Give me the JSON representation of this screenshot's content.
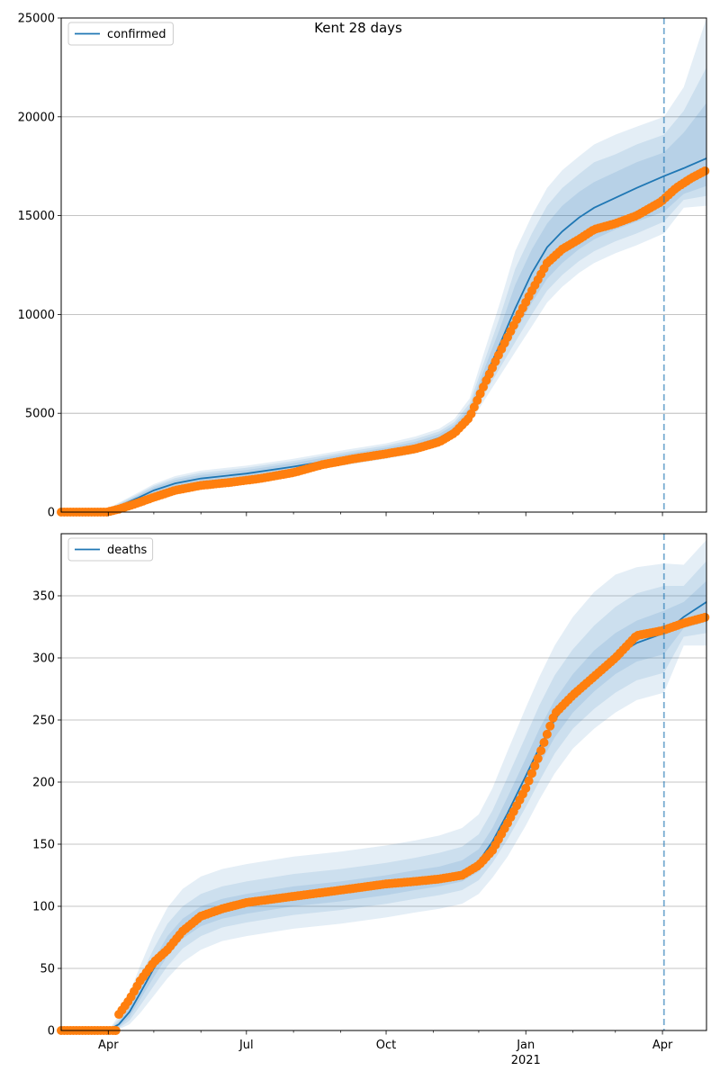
{
  "title": "Kent 28 days",
  "colors": {
    "model_line": "#1f77b4",
    "band": "#1f77b4",
    "observed": "#ff7f0e",
    "grid": "#b0b0b0",
    "forecast_line": "#1f77b4"
  },
  "x_axis": {
    "start": "2020-03-01",
    "end": "2021-04-30",
    "forecast_start": "2021-04-02",
    "ticks": [
      {
        "date": "2020-04-01",
        "label": "Apr",
        "sublabel": ""
      },
      {
        "date": "2020-07-01",
        "label": "Jul",
        "sublabel": ""
      },
      {
        "date": "2020-10-01",
        "label": "Oct",
        "sublabel": ""
      },
      {
        "date": "2021-01-01",
        "label": "Jan",
        "sublabel": "2021"
      },
      {
        "date": "2021-04-01",
        "label": "Apr",
        "sublabel": ""
      }
    ],
    "minor_ticks": [
      "2020-05-01",
      "2020-06-01",
      "2020-08-01",
      "2020-09-01",
      "2020-11-01",
      "2020-12-01",
      "2021-02-01",
      "2021-03-01",
      "2021-05-01"
    ]
  },
  "chart_data": [
    {
      "type": "line",
      "legend": "confirmed",
      "legend_position": "top-left",
      "grid": true,
      "ylim": [
        0,
        25000
      ],
      "yticks": [
        0,
        5000,
        10000,
        15000,
        20000,
        25000
      ],
      "model": {
        "dates": [
          "2020-03-01",
          "2020-03-15",
          "2020-03-29",
          "2020-04-08",
          "2020-04-20",
          "2020-05-01",
          "2020-05-15",
          "2020-06-01",
          "2020-07-01",
          "2020-08-01",
          "2020-09-01",
          "2020-10-01",
          "2020-10-20",
          "2020-11-05",
          "2020-11-15",
          "2020-11-25",
          "2020-12-05",
          "2020-12-15",
          "2020-12-25",
          "2021-01-05",
          "2021-01-15",
          "2021-01-25",
          "2021-02-05",
          "2021-02-15",
          "2021-03-01",
          "2021-03-15",
          "2021-04-02",
          "2021-04-15",
          "2021-04-30"
        ],
        "median": [
          0,
          0,
          20,
          300,
          700,
          1100,
          1450,
          1700,
          1950,
          2300,
          2700,
          3050,
          3350,
          3750,
          4200,
          5000,
          6800,
          8500,
          10300,
          12100,
          13400,
          14200,
          14900,
          15400,
          15900,
          16400,
          17000,
          17400,
          17900
        ],
        "bands": [
          {
            "lower": [
              0,
              0,
              10,
              220,
              580,
              950,
              1280,
              1520,
              1780,
              2120,
              2500,
              2860,
              3150,
              3560,
              4000,
              4750,
              6300,
              7700,
              9100,
              10600,
              11800,
              12600,
              13300,
              13800,
              14300,
              14700,
              15200,
              16100,
              16500
            ],
            "upper": [
              0,
              0,
              35,
              380,
              820,
              1260,
              1620,
              1880,
              2130,
              2480,
              2900,
              3260,
              3560,
              3950,
              4420,
              5300,
              7300,
              9300,
              11500,
              13300,
              14600,
              15500,
              16200,
              16700,
              17200,
              17700,
              18200,
              19200,
              20700
            ]
          },
          {
            "lower": [
              0,
              0,
              5,
              180,
              520,
              880,
              1200,
              1440,
              1700,
              2040,
              2420,
              2780,
              3060,
              3470,
              3900,
              4600,
              6000,
              7300,
              8600,
              10000,
              11200,
              12000,
              12700,
              13200,
              13700,
              14100,
              14700,
              15800,
              16000
            ],
            "upper": [
              0,
              0,
              45,
              430,
              890,
              1340,
              1720,
              1990,
              2240,
              2590,
              3000,
              3370,
              3690,
              4080,
              4560,
              5500,
              7700,
              9900,
              12300,
              14100,
              15500,
              16400,
              17100,
              17700,
              18100,
              18600,
              19100,
              20300,
              22500
            ],
            "note": ""
          },
          {
            "lower": [
              0,
              0,
              0,
              140,
              460,
              800,
              1120,
              1360,
              1620,
              1960,
              2340,
              2690,
              2960,
              3370,
              3790,
              4450,
              5700,
              6900,
              8100,
              9400,
              10600,
              11400,
              12100,
              12600,
              13100,
              13500,
              14100,
              15400,
              15500
            ],
            "upper": [
              0,
              0,
              60,
              480,
              960,
              1420,
              1820,
              2100,
              2350,
              2700,
              3110,
              3480,
              3820,
              4220,
              4720,
              5750,
              8200,
              10600,
              13200,
              15000,
              16400,
              17300,
              18000,
              18600,
              19100,
              19500,
              20000,
              21500,
              25000
            ]
          }
        ]
      },
      "observed": {
        "dates": [
          "2020-03-01",
          "2020-03-31",
          "2020-04-08",
          "2020-04-20",
          "2020-05-01",
          "2020-05-15",
          "2020-06-01",
          "2020-06-20",
          "2020-07-10",
          "2020-08-01",
          "2020-08-20",
          "2020-09-10",
          "2020-10-01",
          "2020-10-20",
          "2020-11-05",
          "2020-11-15",
          "2020-11-25",
          "2020-12-05",
          "2020-12-15",
          "2020-12-25",
          "2021-01-05",
          "2021-01-15",
          "2021-01-25",
          "2021-02-05",
          "2021-02-15",
          "2021-03-01",
          "2021-03-15",
          "2021-03-31",
          "2021-04-10",
          "2021-04-20",
          "2021-04-30"
        ],
        "values": [
          0,
          0,
          150,
          450,
          750,
          1100,
          1350,
          1500,
          1700,
          2000,
          2400,
          2700,
          2950,
          3200,
          3550,
          4000,
          4800,
          6500,
          8100,
          9600,
          11200,
          12600,
          13300,
          13800,
          14300,
          14600,
          15000,
          15700,
          16400,
          16900,
          17300
        ]
      }
    },
    {
      "type": "line",
      "legend": "deaths",
      "legend_position": "top-left",
      "grid": true,
      "ylim": [
        0,
        400
      ],
      "yticks": [
        0,
        50,
        100,
        150,
        200,
        250,
        300,
        350
      ],
      "model": {
        "dates": [
          "2020-03-01",
          "2020-03-25",
          "2020-04-01",
          "2020-04-08",
          "2020-04-15",
          "2020-04-22",
          "2020-05-01",
          "2020-05-10",
          "2020-05-20",
          "2020-06-01",
          "2020-06-15",
          "2020-07-01",
          "2020-08-01",
          "2020-09-01",
          "2020-10-01",
          "2020-10-20",
          "2020-11-05",
          "2020-11-20",
          "2020-12-01",
          "2020-12-10",
          "2020-12-20",
          "2021-01-01",
          "2021-01-10",
          "2021-01-20",
          "2021-02-01",
          "2021-02-15",
          "2021-03-01",
          "2021-03-15",
          "2021-04-02",
          "2021-04-15",
          "2021-04-30"
        ],
        "median": [
          0,
          0,
          0,
          5,
          15,
          30,
          50,
          68,
          82,
          92,
          98,
          102,
          108,
          112,
          117,
          121,
          124,
          128,
          136,
          152,
          175,
          205,
          228,
          250,
          270,
          288,
          302,
          312,
          320,
          333,
          345
        ],
        "bands": [
          {
            "lower": [
              0,
              0,
              0,
              3,
              11,
              25,
              43,
              60,
              74,
              84,
              90,
              94,
              100,
              104,
              109,
              113,
              116,
              120,
              128,
              143,
              164,
              192,
              214,
              236,
              256,
              273,
              287,
              297,
              303,
              324,
              329
            ],
            "upper": [
              0,
              0,
              0,
              7,
              19,
              36,
              57,
              76,
              90,
              100,
              106,
              110,
              116,
              120,
              125,
              129,
              132,
              137,
              146,
              163,
              188,
              219,
              243,
              266,
              287,
              306,
              320,
              330,
              338,
              345,
              362
            ]
          },
          {
            "lower": [
              0,
              0,
              0,
              2,
              8,
              20,
              36,
              52,
              66,
              76,
              83,
              87,
              93,
              97,
              102,
              106,
              109,
              113,
              121,
              135,
              154,
              180,
              201,
              223,
              243,
              259,
              272,
              282,
              288,
              317,
              320
            ],
            "upper": [
              0,
              0,
              0,
              9,
              24,
              43,
              66,
              86,
              100,
              110,
              116,
              120,
              126,
              130,
              135,
              139,
              143,
              148,
              158,
              177,
              204,
              237,
              262,
              286,
              307,
              326,
              341,
              352,
              358,
              358,
              378
            ]
          },
          {
            "lower": [
              0,
              0,
              0,
              1,
              5,
              14,
              28,
              42,
              55,
              65,
              72,
              76,
              82,
              86,
              91,
              95,
              98,
              102,
              110,
              123,
              140,
              165,
              186,
              207,
              227,
              243,
              256,
              266,
              272,
              310,
              310
            ],
            "upper": [
              0,
              0,
              0,
              12,
              30,
              52,
              78,
              99,
              114,
              124,
              130,
              134,
              140,
              144,
              149,
              153,
              157,
              163,
              174,
              195,
              225,
              260,
              285,
              310,
              333,
              353,
              367,
              373,
              376,
              375,
              395
            ]
          }
        ]
      },
      "observed": {
        "dates": [
          "2020-03-01",
          "2020-04-07",
          "2020-04-08",
          "2020-04-15",
          "2020-04-22",
          "2020-05-01",
          "2020-05-10",
          "2020-05-20",
          "2020-06-01",
          "2020-06-15",
          "2020-07-01",
          "2020-08-01",
          "2020-09-01",
          "2020-10-01",
          "2020-10-20",
          "2020-11-05",
          "2020-11-20",
          "2020-12-01",
          "2020-12-10",
          "2020-12-20",
          "2021-01-01",
          "2021-01-10",
          "2021-01-20",
          "2021-02-01",
          "2021-02-15",
          "2021-03-01",
          "2021-03-15",
          "2021-04-01",
          "2021-04-15",
          "2021-04-30"
        ],
        "values": [
          0,
          0,
          13,
          25,
          40,
          55,
          65,
          80,
          92,
          98,
          103,
          108,
          113,
          118,
          120,
          122,
          125,
          133,
          145,
          167,
          195,
          222,
          255,
          270,
          285,
          300,
          318,
          322,
          328,
          333
        ]
      }
    }
  ]
}
